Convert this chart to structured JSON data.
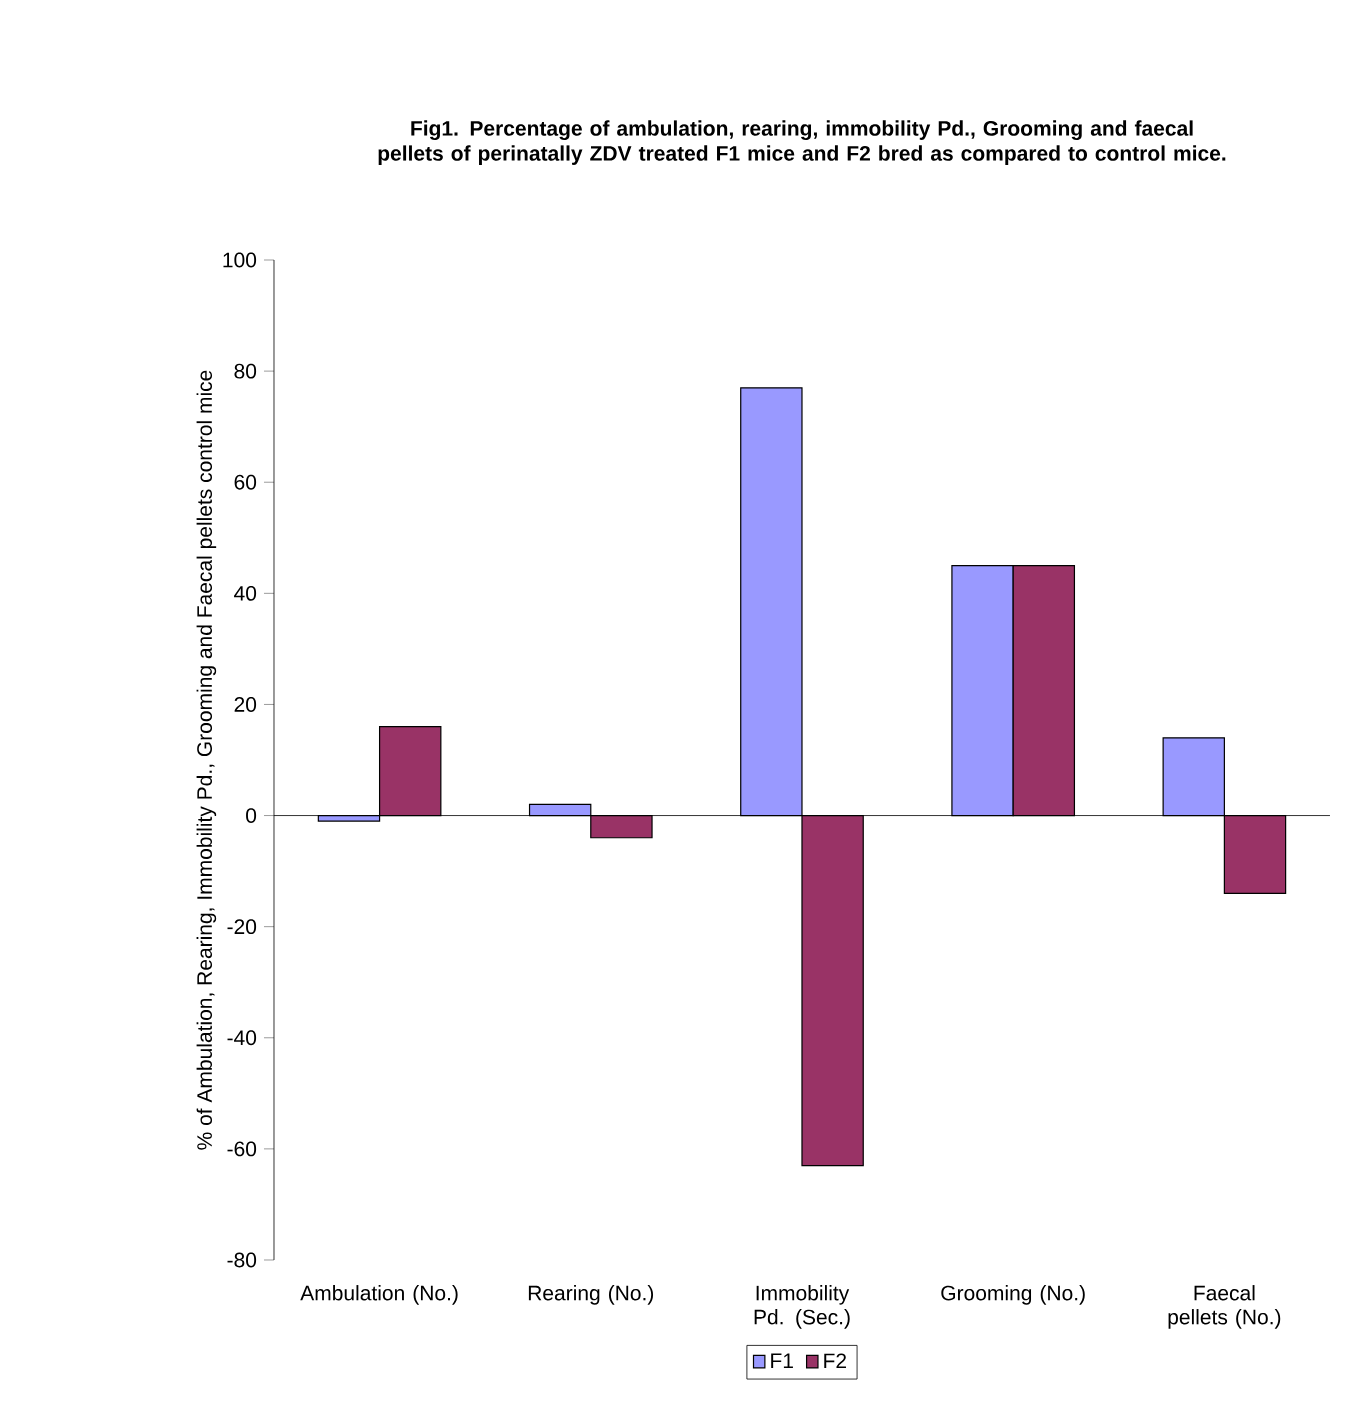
{
  "chart_data": {
    "type": "bar",
    "title": "Fig1. Percentage of ambulation, rearing, immobility Pd., Grooming and faecal pellets of perinatally ZDV treated F1 mice and F2 bred as compared to control mice.",
    "ylabel": "% of Ambulation, Rearing, Immobility Pd., Grooming and Faecal pellets control mice",
    "categories": [
      "Ambulation (No.)",
      "Rearing (No.)",
      "Immobility Pd. (Sec.)",
      "Grooming (No.)",
      "Faecal pellets (No.)"
    ],
    "series": [
      {
        "name": "F1",
        "color": "#9999ff",
        "values": [
          -1,
          2,
          77,
          45,
          14
        ]
      },
      {
        "name": "F2",
        "color": "#993366",
        "values": [
          16,
          -4,
          -63,
          45,
          -14
        ]
      }
    ],
    "ylim": [
      -80,
      100
    ],
    "yticks": [
      -80,
      -60,
      -40,
      -20,
      0,
      20,
      40,
      60,
      80,
      100
    ],
    "legend": "bottom"
  }
}
